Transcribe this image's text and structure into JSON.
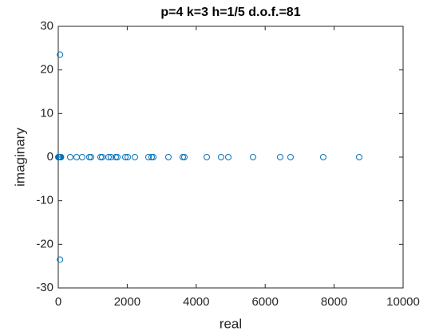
{
  "chart_data": {
    "type": "scatter",
    "title": "p=4 k=3 h=1/5 d.o.f.=81",
    "xlabel": "real",
    "ylabel": "imaginary",
    "series": [
      {
        "color": "#0072bd",
        "x": [
          0,
          15,
          30,
          45,
          60,
          80,
          347,
          532,
          694,
          903,
          949,
          1227,
          1273,
          1458,
          1528,
          1667,
          1713,
          1944,
          2014,
          2222,
          2616,
          2708,
          2755,
          3194,
          3611,
          3657,
          4306,
          4722,
          4931,
          5648,
          6435,
          6736,
          7685,
          8727,
          50,
          50
        ],
        "values": [
          0,
          0,
          0,
          0,
          0,
          0,
          0,
          0,
          0,
          0,
          0,
          0,
          0,
          0,
          0,
          0,
          0,
          0,
          0,
          0,
          0,
          0,
          0,
          0,
          0,
          0,
          0,
          0,
          0,
          0,
          0,
          0,
          0,
          0,
          23.5,
          -23.5
        ]
      }
    ],
    "xlim": [
      0,
      10000
    ],
    "xticks": [
      0,
      2000,
      4000,
      6000,
      8000,
      10000
    ],
    "ylim": [
      -30,
      30
    ],
    "yticks": [
      -30,
      -20,
      -10,
      0,
      10,
      20,
      30
    ]
  }
}
